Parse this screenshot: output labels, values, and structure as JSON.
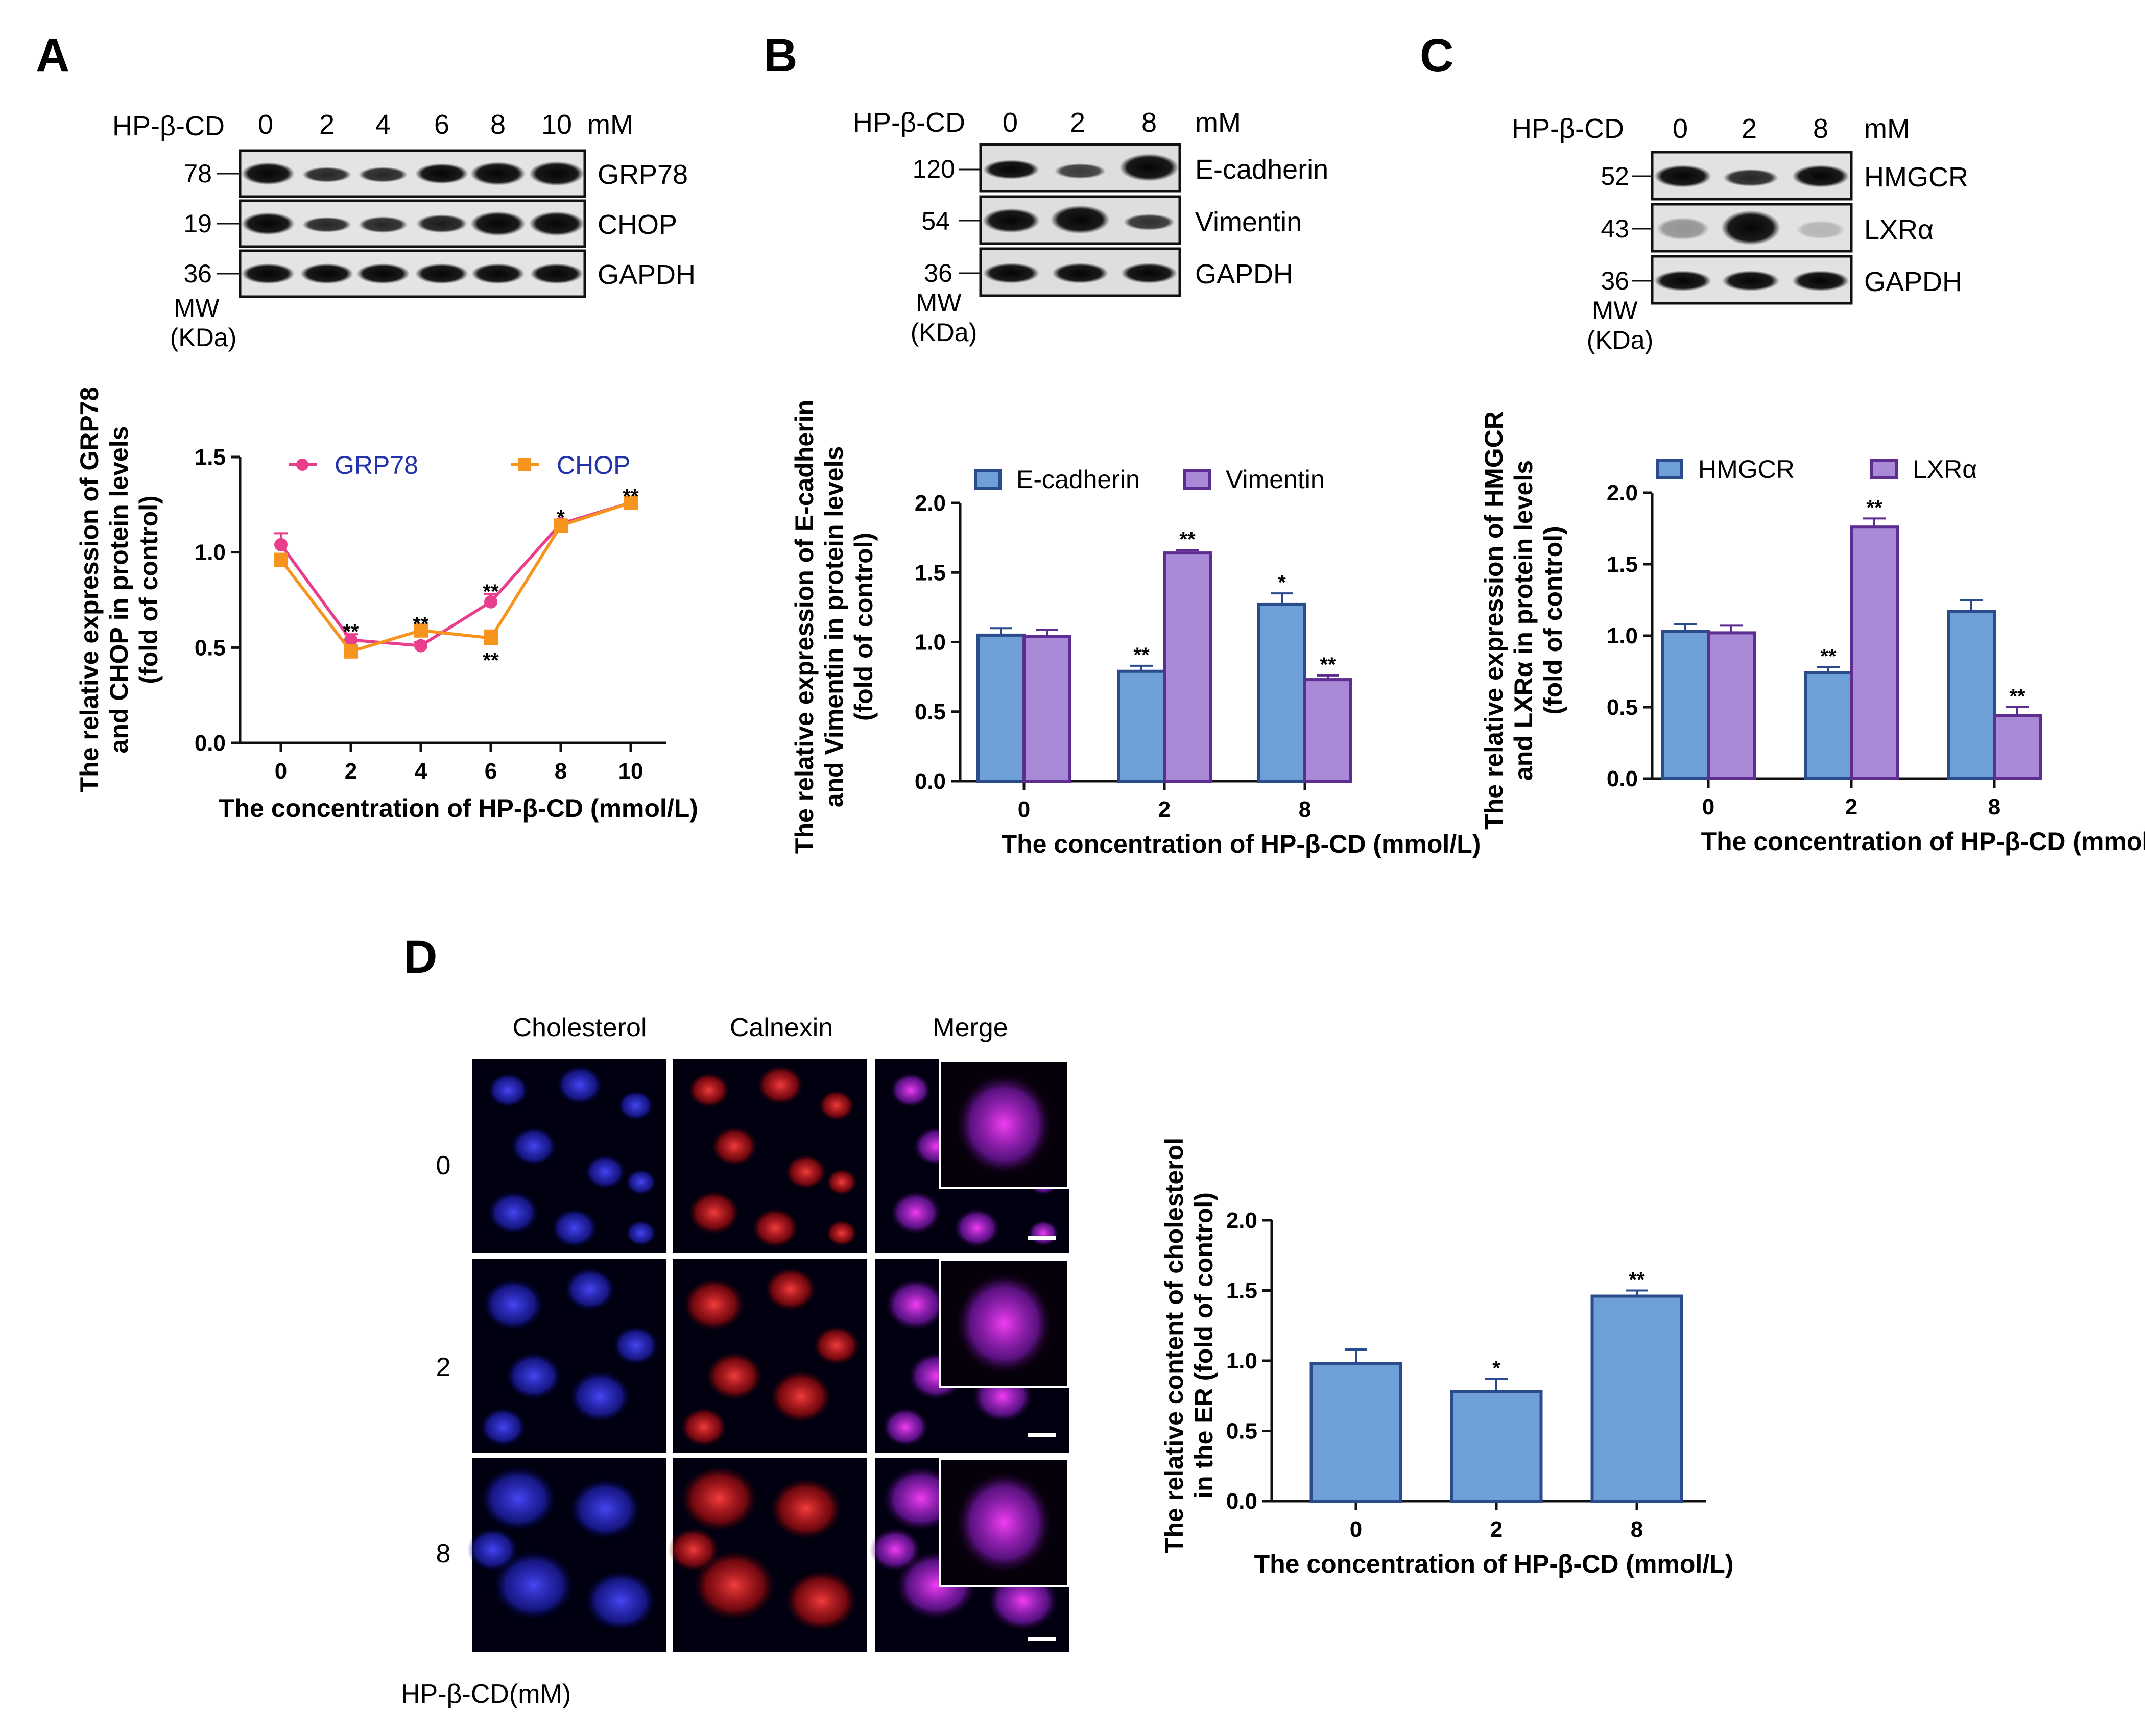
{
  "colors": {
    "grp78": "#e83e8c",
    "chop": "#f7941d",
    "ecadherin": "#6e9fd6",
    "vimentin": "#a98ad6",
    "vimentin_edge": "#5d2d91",
    "bar_edge": "#2b4c8c",
    "legend_blue_text": "#2233aa"
  },
  "panels": {
    "A": {
      "letter": "A",
      "blot": {
        "treatment_label": "HP-β-CD",
        "lanes": [
          "0",
          "2",
          "4",
          "6",
          "8",
          "10"
        ],
        "unit": "mM",
        "rows": [
          {
            "mw": "78",
            "protein": "GRP78"
          },
          {
            "mw": "19",
            "protein": "CHOP"
          },
          {
            "mw": "36",
            "protein": "GAPDH"
          }
        ],
        "mw_label": "MW",
        "kda_label": "(KDa)"
      }
    },
    "B": {
      "letter": "B",
      "blot": {
        "treatment_label": "HP-β-CD",
        "lanes": [
          "0",
          "2",
          "8"
        ],
        "unit": "mM",
        "rows": [
          {
            "mw": "120",
            "protein": "E-cadherin"
          },
          {
            "mw": "54",
            "protein": "Vimentin"
          },
          {
            "mw": "36",
            "protein": "GAPDH"
          }
        ],
        "mw_label": "MW",
        "kda_label": "(KDa)"
      }
    },
    "C": {
      "letter": "C",
      "blot": {
        "treatment_label": "HP-β-CD",
        "lanes": [
          "0",
          "2",
          "8"
        ],
        "unit": "mM",
        "rows": [
          {
            "mw": "52",
            "protein": "HMGCR"
          },
          {
            "mw": "43",
            "protein": "LXRα"
          },
          {
            "mw": "36",
            "protein": "GAPDH"
          }
        ],
        "mw_label": "MW",
        "kda_label": "(KDa)"
      }
    },
    "D": {
      "letter": "D",
      "if": {
        "columns": [
          "Cholesterol",
          "Calnexin",
          "Merge"
        ],
        "rows": [
          "0",
          "2",
          "8"
        ],
        "footer": "HP-β-CD(mM)"
      }
    }
  },
  "chart_data": [
    {
      "id": "A",
      "type": "line",
      "x": [
        0,
        2,
        4,
        6,
        8,
        10
      ],
      "series": [
        {
          "name": "GRP78",
          "values": [
            1.04,
            0.54,
            0.51,
            0.74,
            1.15,
            1.26
          ],
          "errors": [
            0.06,
            0.03,
            0.02,
            0.04,
            0.02,
            0.02
          ]
        },
        {
          "name": "CHOP",
          "values": [
            0.96,
            0.48,
            0.59,
            0.55,
            1.14,
            1.26
          ],
          "errors": [
            0.03,
            0.02,
            0.02,
            0.04,
            0.02,
            0.02
          ]
        }
      ],
      "annotations": [
        {
          "x": 2,
          "text": "**",
          "y": 0.58
        },
        {
          "x": 4,
          "text": "**",
          "y": 0.62
        },
        {
          "x": 6,
          "text": "**",
          "y": 0.79
        },
        {
          "x": 6,
          "text": "**",
          "y": 0.43
        },
        {
          "x": 8,
          "text": "*",
          "y": 1.18
        },
        {
          "x": 10,
          "text": "**",
          "y": 1.29
        }
      ],
      "xticks": [
        "0",
        "2",
        "4",
        "6",
        "8",
        "10"
      ],
      "yticks": [
        "0.0",
        "0.5",
        "1.0",
        "1.5"
      ],
      "ylim": [
        0,
        1.5
      ],
      "xlabel": "The concentration of HP-β-CD (mmol/L)",
      "ylabel_lines": [
        "The relative expression of GRP78",
        "and CHOP in protein levels",
        "(fold of control)"
      ],
      "legend": [
        "GRP78",
        "CHOP"
      ]
    },
    {
      "id": "B",
      "type": "bar",
      "categories": [
        "0",
        "2",
        "8"
      ],
      "series": [
        {
          "name": "E-cadherin",
          "values": [
            1.05,
            0.79,
            1.27
          ],
          "errors": [
            0.05,
            0.04,
            0.08
          ],
          "stars": [
            "",
            "**",
            "*"
          ]
        },
        {
          "name": "Vimentin",
          "values": [
            1.04,
            1.64,
            0.73
          ],
          "errors": [
            0.05,
            0.02,
            0.03
          ],
          "stars": [
            "",
            "**",
            "**"
          ]
        }
      ],
      "yticks": [
        "0.0",
        "0.5",
        "1.0",
        "1.5",
        "2.0"
      ],
      "ylim": [
        0,
        2.0
      ],
      "xlabel": "The concentration of HP-β-CD (mmol/L)",
      "ylabel_lines": [
        "The relative expression of E-cadherin",
        "and Vimentin in protein levels",
        "(fold of control)"
      ],
      "legend": [
        "E-cadherin",
        "Vimentin"
      ]
    },
    {
      "id": "C",
      "type": "bar",
      "categories": [
        "0",
        "2",
        "8"
      ],
      "series": [
        {
          "name": "HMGCR",
          "values": [
            1.03,
            0.74,
            1.17
          ],
          "errors": [
            0.05,
            0.04,
            0.08
          ],
          "stars": [
            "",
            "**",
            ""
          ]
        },
        {
          "name": "LXRα",
          "values": [
            1.02,
            1.76,
            0.44
          ],
          "errors": [
            0.05,
            0.06,
            0.06
          ],
          "stars": [
            "",
            "**",
            "**"
          ]
        }
      ],
      "yticks": [
        "0.0",
        "0.5",
        "1.0",
        "1.5",
        "2.0"
      ],
      "ylim": [
        0,
        2.0
      ],
      "xlabel": "The concentration of HP-β-CD (mmol/L)",
      "ylabel_lines": [
        "The relative expression of HMGCR",
        "and LXRα in protein levels",
        "(fold of control)"
      ],
      "legend": [
        "HMGCR",
        "LXRα"
      ]
    },
    {
      "id": "D",
      "type": "bar",
      "categories": [
        "0",
        "2",
        "8"
      ],
      "series": [
        {
          "name": "Cholesterol in ER",
          "values": [
            0.98,
            0.78,
            1.46
          ],
          "errors": [
            0.1,
            0.09,
            0.04
          ],
          "stars": [
            "",
            "*",
            "**"
          ]
        }
      ],
      "yticks": [
        "0.0",
        "0.5",
        "1.0",
        "1.5",
        "2.0"
      ],
      "ylim": [
        0,
        2.0
      ],
      "xlabel": "The concentration of HP-β-CD (mmol/L)",
      "ylabel_lines": [
        "The relative content of cholesterol",
        "in the ER (fold of control)"
      ]
    }
  ]
}
